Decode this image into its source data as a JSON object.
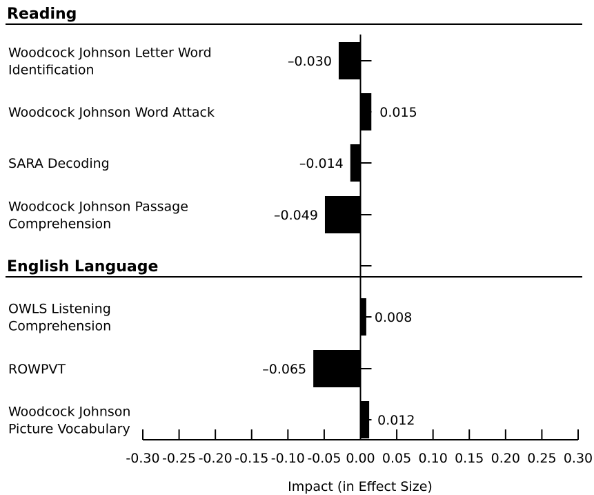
{
  "chart_data": {
    "type": "bar",
    "orientation": "horizontal",
    "xlabel": "Impact (in Effect Size)",
    "xlim": [
      -0.3,
      0.3
    ],
    "xticks": [
      "-0.30",
      "-0.25",
      "-0.20",
      "-0.15",
      "-0.10",
      "-0.05",
      "0.00",
      "0.05",
      "0.10",
      "0.15",
      "0.20",
      "0.25",
      "0.30"
    ],
    "sections": [
      {
        "title": "Reading",
        "items": [
          {
            "label": [
              "Woodcock Johnson Letter Word",
              "Identification"
            ],
            "value": -0.03,
            "value_label": "–0.030"
          },
          {
            "label": [
              "Woodcock Johnson Word Attack"
            ],
            "value": 0.015,
            "value_label": "0.015"
          },
          {
            "label": [
              "SARA Decoding"
            ],
            "value": -0.014,
            "value_label": "–0.014"
          },
          {
            "label": [
              "Woodcock Johnson Passage",
              "Comprehension"
            ],
            "value": -0.049,
            "value_label": "–0.049"
          }
        ]
      },
      {
        "title": "English Language",
        "items": [
          {
            "label": [
              "OWLS Listening",
              "Comprehension"
            ],
            "value": 0.008,
            "value_label": "0.008"
          },
          {
            "label": [
              "ROWPVT"
            ],
            "value": -0.065,
            "value_label": "–0.065"
          },
          {
            "label": [
              "Woodcock Johnson",
              "Picture Vocabulary"
            ],
            "value": 0.012,
            "value_label": "0.012"
          }
        ]
      }
    ]
  }
}
